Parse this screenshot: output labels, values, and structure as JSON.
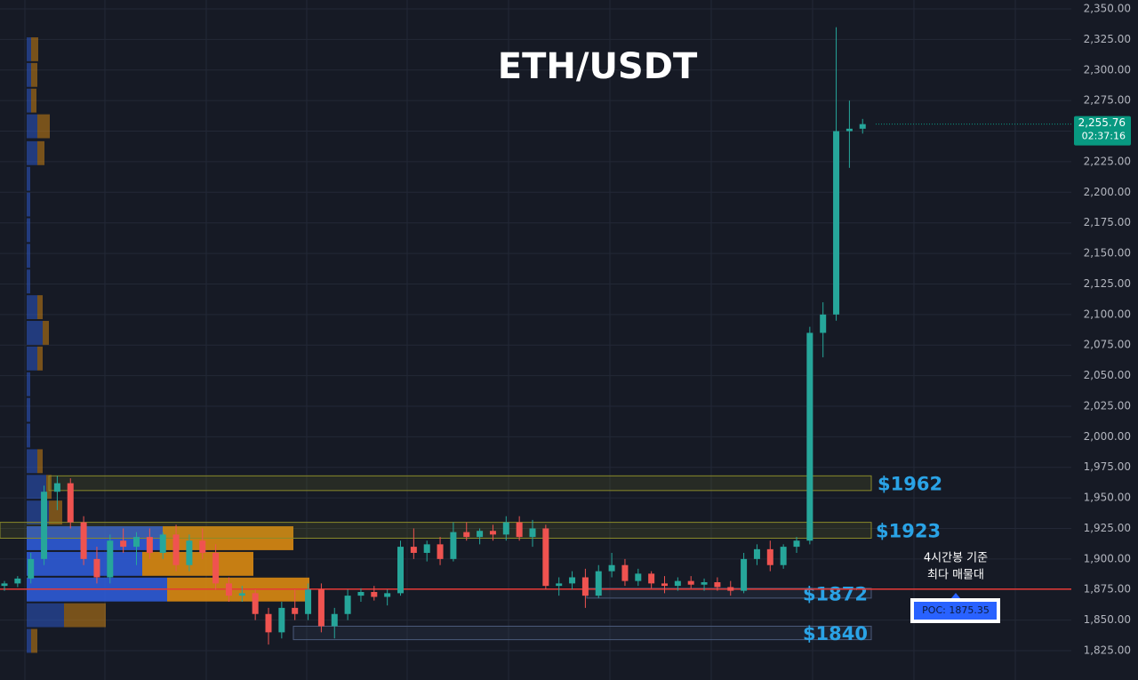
{
  "chart_data": {
    "type": "candlestick",
    "title": "ETH/USDT",
    "ylim": [
      1801,
      2357.3
    ],
    "yticks": [
      {
        "value": 2350,
        "label": "2,350.00"
      },
      {
        "value": 2325,
        "label": "2,325.00"
      },
      {
        "value": 2300,
        "label": "2,300.00"
      },
      {
        "value": 2275,
        "label": "2,275.00"
      },
      {
        "value": 2250,
        "label": "2,250.00"
      },
      {
        "value": 2225,
        "label": "2,225.00"
      },
      {
        "value": 2200,
        "label": "2,200.00"
      },
      {
        "value": 2175,
        "label": "2,175.00"
      },
      {
        "value": 2150,
        "label": "2,150.00"
      },
      {
        "value": 2125,
        "label": "2,125.00"
      },
      {
        "value": 2100,
        "label": "2,100.00"
      },
      {
        "value": 2075,
        "label": "2,075.00"
      },
      {
        "value": 2050,
        "label": "2,050.00"
      },
      {
        "value": 2025,
        "label": "2,025.00"
      },
      {
        "value": 2000,
        "label": "2,000.00"
      },
      {
        "value": 1975,
        "label": "1,975.00"
      },
      {
        "value": 1950,
        "label": "1,950.00"
      },
      {
        "value": 1925,
        "label": "1,925.00"
      },
      {
        "value": 1900,
        "label": "1,900.00"
      },
      {
        "value": 1875,
        "label": "1,875.00"
      },
      {
        "value": 1850,
        "label": "1,850.00"
      },
      {
        "value": 1825,
        "label": "1,825.00"
      }
    ],
    "grid": true,
    "up_color": "#26a69a",
    "down_color": "#ef5350",
    "ohlc": [
      [
        1878,
        1882,
        1874,
        1880
      ],
      [
        1880,
        1886,
        1877,
        1884
      ],
      [
        1884,
        1905,
        1880,
        1900
      ],
      [
        1900,
        1960,
        1895,
        1955
      ],
      [
        1955,
        1968,
        1940,
        1962
      ],
      [
        1962,
        1966,
        1925,
        1930
      ],
      [
        1930,
        1935,
        1895,
        1900
      ],
      [
        1900,
        1910,
        1880,
        1885
      ],
      [
        1885,
        1920,
        1880,
        1915
      ],
      [
        1915,
        1925,
        1905,
        1910
      ],
      [
        1910,
        1922,
        1895,
        1918
      ],
      [
        1918,
        1925,
        1900,
        1905
      ],
      [
        1905,
        1922,
        1900,
        1920
      ],
      [
        1920,
        1928,
        1890,
        1895
      ],
      [
        1895,
        1920,
        1890,
        1915
      ],
      [
        1915,
        1925,
        1900,
        1905
      ],
      [
        1905,
        1912,
        1875,
        1880
      ],
      [
        1880,
        1885,
        1865,
        1870
      ],
      [
        1870,
        1878,
        1865,
        1872
      ],
      [
        1872,
        1875,
        1850,
        1855
      ],
      [
        1855,
        1860,
        1830,
        1840
      ],
      [
        1840,
        1865,
        1835,
        1860
      ],
      [
        1860,
        1875,
        1850,
        1855
      ],
      [
        1855,
        1880,
        1850,
        1875
      ],
      [
        1875,
        1880,
        1840,
        1845
      ],
      [
        1845,
        1860,
        1835,
        1855
      ],
      [
        1855,
        1875,
        1850,
        1870
      ],
      [
        1870,
        1876,
        1865,
        1873
      ],
      [
        1873,
        1878,
        1866,
        1869
      ],
      [
        1869,
        1875,
        1862,
        1872
      ],
      [
        1872,
        1915,
        1870,
        1910
      ],
      [
        1910,
        1925,
        1900,
        1905
      ],
      [
        1905,
        1915,
        1898,
        1912
      ],
      [
        1912,
        1918,
        1895,
        1900
      ],
      [
        1900,
        1930,
        1898,
        1922
      ],
      [
        1922,
        1930,
        1915,
        1918
      ],
      [
        1918,
        1925,
        1912,
        1923
      ],
      [
        1923,
        1928,
        1915,
        1920
      ],
      [
        1920,
        1935,
        1915,
        1930
      ],
      [
        1930,
        1935,
        1915,
        1918
      ],
      [
        1918,
        1932,
        1910,
        1925
      ],
      [
        1925,
        1928,
        1875,
        1878
      ],
      [
        1878,
        1885,
        1870,
        1880
      ],
      [
        1880,
        1890,
        1875,
        1885
      ],
      [
        1885,
        1892,
        1860,
        1870
      ],
      [
        1870,
        1895,
        1868,
        1890
      ],
      [
        1890,
        1905,
        1885,
        1895
      ],
      [
        1895,
        1900,
        1878,
        1882
      ],
      [
        1882,
        1892,
        1878,
        1888
      ],
      [
        1888,
        1890,
        1876,
        1880
      ],
      [
        1880,
        1886,
        1872,
        1878
      ],
      [
        1878,
        1885,
        1874,
        1882
      ],
      [
        1882,
        1886,
        1876,
        1879
      ],
      [
        1879,
        1884,
        1874,
        1881
      ],
      [
        1881,
        1885,
        1874,
        1877
      ],
      [
        1877,
        1882,
        1870,
        1874
      ],
      [
        1874,
        1905,
        1872,
        1900
      ],
      [
        1900,
        1912,
        1895,
        1908
      ],
      [
        1908,
        1915,
        1890,
        1895
      ],
      [
        1895,
        1912,
        1892,
        1910
      ],
      [
        1910,
        1918,
        1905,
        1915
      ],
      [
        1915,
        2090,
        1912,
        2085
      ],
      [
        2085,
        2110,
        2065,
        2100
      ],
      [
        2100,
        2335,
        2095,
        2250
      ],
      [
        2250,
        2275,
        2220,
        2252
      ],
      [
        2252,
        2260,
        2248,
        2255.76
      ]
    ],
    "volume_profile": {
      "buy_color": "#2e5bd6",
      "sell_color": "#d98a12",
      "levels": [
        1833,
        1854,
        1875,
        1896,
        1917,
        1938,
        1959,
        1980,
        2001,
        2022,
        2043,
        2064,
        2085,
        2106,
        2127,
        2148,
        2169,
        2190,
        2211,
        2232,
        2254,
        2275,
        2296,
        2317
      ],
      "buy": [
        5,
        42,
        158,
        130,
        153,
        25,
        22,
        12,
        4,
        4,
        4,
        12,
        18,
        12,
        4,
        4,
        4,
        4,
        4,
        12,
        12,
        5,
        5,
        5
      ],
      "sell": [
        7,
        47,
        160,
        125,
        147,
        15,
        6,
        6,
        0,
        0,
        0,
        6,
        7,
        6,
        0,
        0,
        0,
        0,
        0,
        8,
        14,
        6,
        7,
        8
      ]
    },
    "zones": [
      {
        "label": "$1962",
        "low": 1956,
        "high": 1968
      },
      {
        "label": "$1923",
        "low": 1917,
        "high": 1930
      },
      {
        "label": "$1872",
        "low": 1868,
        "high": 1876
      },
      {
        "label": "$1840",
        "low": 1834,
        "high": 1845
      }
    ],
    "poc": {
      "value": 1875.35,
      "label": "POC: 1875.35",
      "color": "#e53935"
    },
    "annotation": [
      "4시간봉 기준",
      "최다 매물대"
    ],
    "price_tag": {
      "value": 2255.76,
      "label": "2,255.76",
      "countdown": "02:37:16",
      "color": "#089981"
    }
  }
}
